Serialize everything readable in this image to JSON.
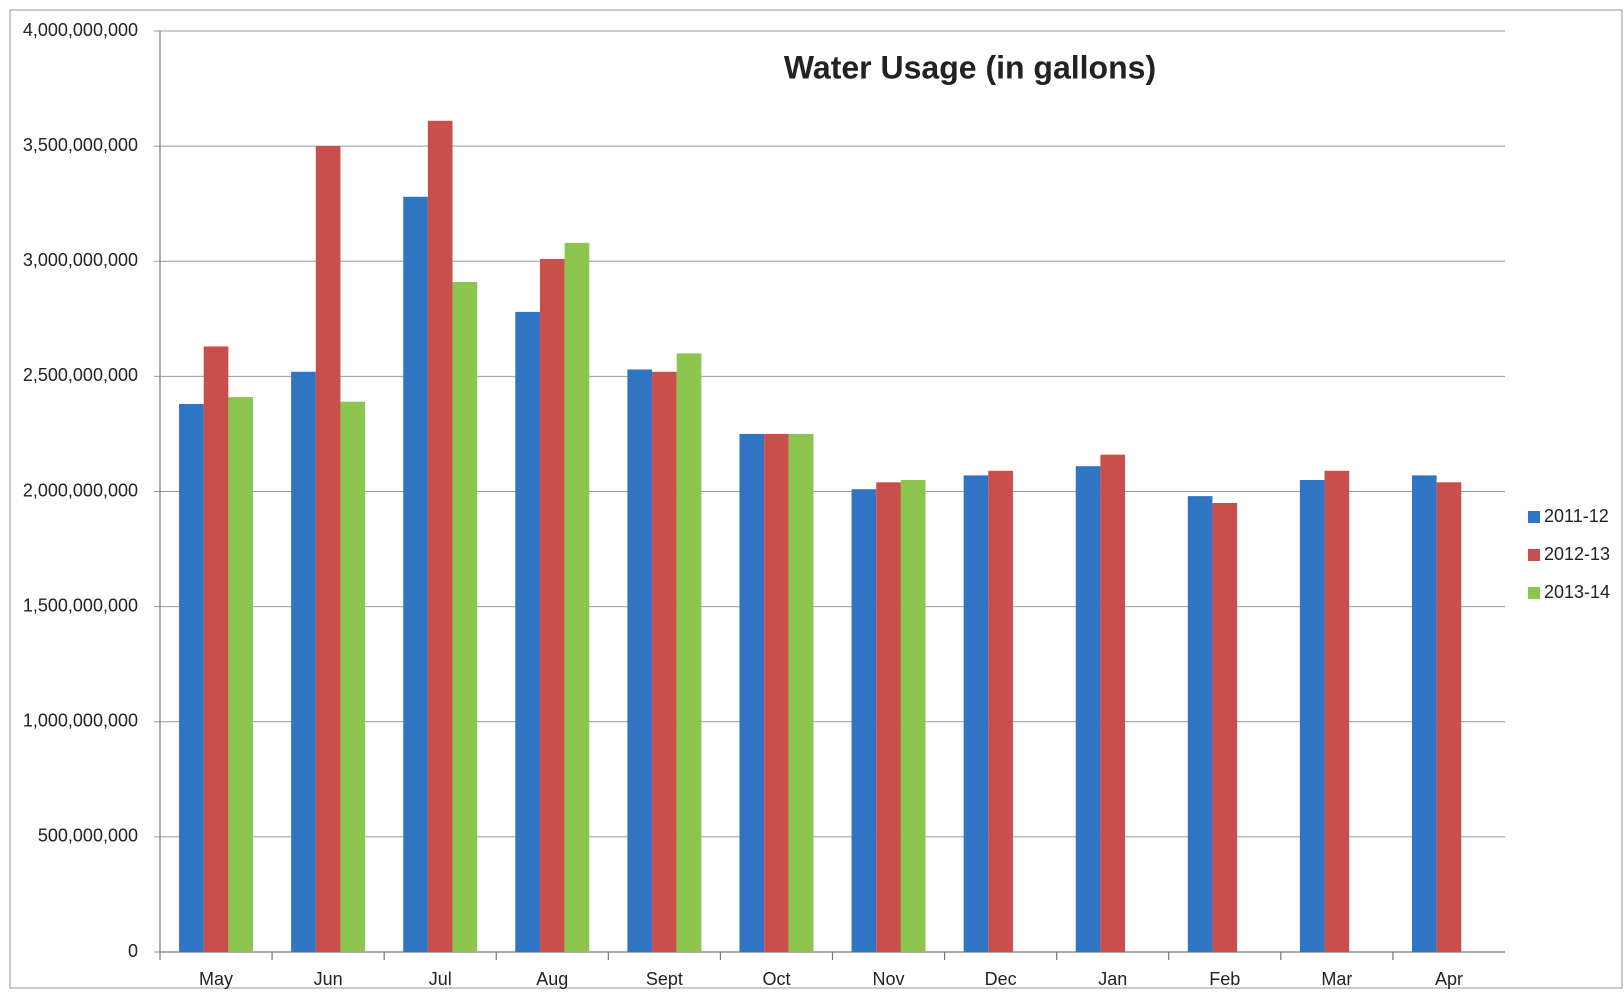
{
  "chart_data": {
    "type": "bar",
    "title": "Water Usage (in gallons)",
    "categories": [
      "May",
      "Jun",
      "Jul",
      "Aug",
      "Sept",
      "Oct",
      "Nov",
      "Dec",
      "Jan",
      "Feb",
      "Mar",
      "Apr"
    ],
    "series": [
      {
        "name": "2011-12",
        "color": "#2f75c4",
        "values": [
          2380000000,
          2520000000,
          3280000000,
          2780000000,
          2530000000,
          2250000000,
          2010000000,
          2070000000,
          2110000000,
          1980000000,
          2050000000,
          2070000000
        ]
      },
      {
        "name": "2012-13",
        "color": "#c84f4b",
        "values": [
          2630000000,
          3500000000,
          3610000000,
          3010000000,
          2520000000,
          2250000000,
          2040000000,
          2090000000,
          2160000000,
          1950000000,
          2090000000,
          2040000000
        ]
      },
      {
        "name": "2013-14",
        "color": "#8cc64e",
        "values": [
          2410000000,
          2390000000,
          2910000000,
          3080000000,
          2600000000,
          2250000000,
          2050000000,
          null,
          null,
          null,
          null,
          null
        ]
      }
    ],
    "ylim": [
      0,
      4000000000
    ],
    "yticks": [
      0,
      {
        "value": 500000000,
        "label": "500,000,000"
      },
      {
        "value": 1000000000,
        "label": "1,000,000,000"
      },
      {
        "value": 1500000000,
        "label": "1,500,000,000"
      },
      {
        "value": 2000000000,
        "label": "2,000,000,000"
      },
      {
        "value": 2500000000,
        "label": "2,500,000,000"
      },
      {
        "value": 3000000000,
        "label": "3,000,000,000"
      },
      {
        "value": 3500000000,
        "label": "3,500,000,000"
      },
      {
        "value": 4000000000,
        "label": "4,000,000,000"
      }
    ],
    "grid": true,
    "legend": "right"
  }
}
